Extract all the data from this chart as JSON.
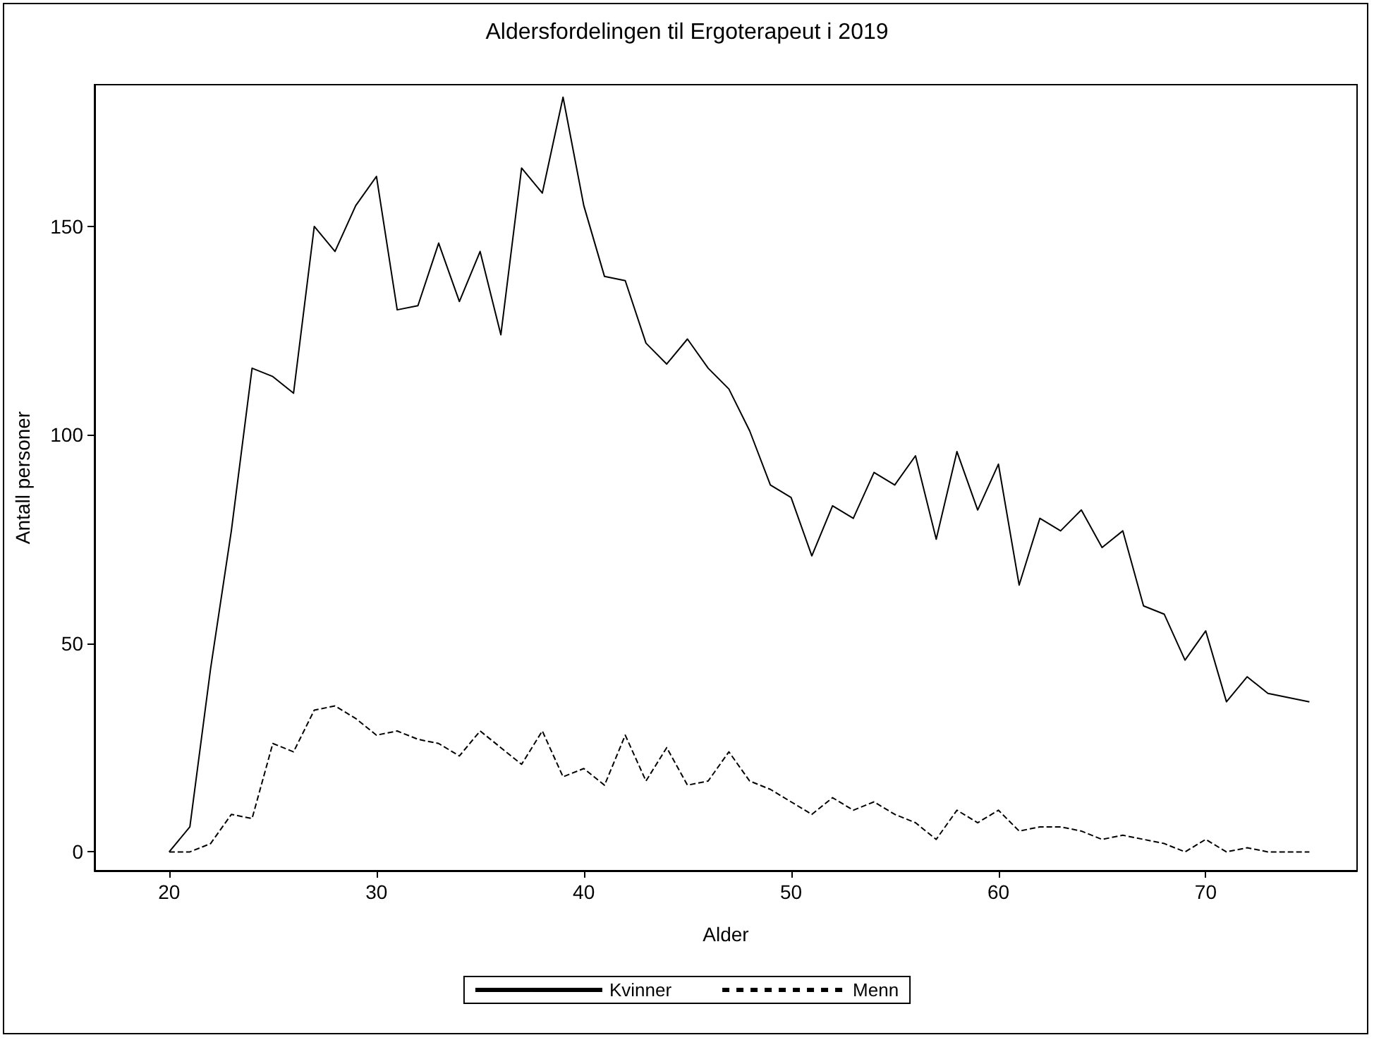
{
  "chart_data": {
    "type": "line",
    "title": "Aldersfordelingen til Ergoterapeut i 2019",
    "xlabel": "Alder",
    "ylabel": "Antall personer",
    "x": [
      20,
      21,
      22,
      23,
      24,
      25,
      26,
      27,
      28,
      29,
      30,
      31,
      32,
      33,
      34,
      35,
      36,
      37,
      38,
      39,
      40,
      41,
      42,
      43,
      44,
      45,
      46,
      47,
      48,
      49,
      50,
      51,
      52,
      53,
      54,
      55,
      56,
      57,
      58,
      59,
      60,
      61,
      62,
      63,
      64,
      65,
      66,
      67,
      68,
      69,
      70,
      71,
      72,
      73,
      74,
      75
    ],
    "series": [
      {
        "name": "Kvinner",
        "color": "#000000",
        "line_style": "solid",
        "values": [
          0,
          6,
          44,
          77,
          116,
          114,
          110,
          150,
          144,
          155,
          162,
          130,
          131,
          146,
          132,
          144,
          124,
          164,
          158,
          181,
          155,
          138,
          137,
          122,
          117,
          123,
          116,
          111,
          101,
          88,
          85,
          71,
          83,
          80,
          91,
          88,
          95,
          75,
          96,
          82,
          93,
          64,
          80,
          77,
          82,
          73,
          77,
          59,
          57,
          46,
          53,
          36,
          42,
          38,
          37,
          36
        ]
      },
      {
        "name": "Menn",
        "color": "#000000",
        "line_style": "dashed",
        "values": [
          0,
          0,
          2,
          9,
          8,
          26,
          24,
          34,
          35,
          32,
          28,
          29,
          27,
          26,
          23,
          29,
          25,
          21,
          29,
          18,
          20,
          16,
          28,
          17,
          25,
          16,
          17,
          24,
          17,
          15,
          12,
          9,
          13,
          10,
          12,
          9,
          7,
          3,
          10,
          7,
          10,
          5,
          6,
          6,
          5,
          3,
          4,
          3,
          2,
          0,
          3,
          0,
          1,
          0,
          0,
          0
        ]
      }
    ],
    "xlim": [
      16.4,
      77.3
    ],
    "ylim": [
      -4.5,
      184
    ],
    "xticks": [
      20,
      30,
      40,
      50,
      60,
      70
    ],
    "yticks": [
      0,
      50,
      100,
      150
    ],
    "grid": false,
    "legend": "bottom",
    "marker": "none"
  }
}
